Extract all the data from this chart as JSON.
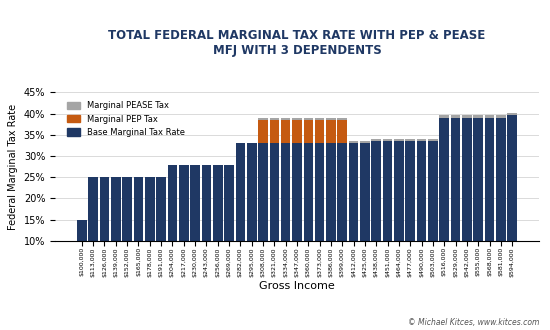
{
  "title_line1": "TOTAL FEDERAL MARGINAL TAX RATE WITH PEP & PEASE",
  "title_line2": "MFJ WITH 3 DEPENDENTS",
  "xlabel": "Gross Income",
  "ylabel": "Federal Marginal Tax Rate",
  "copyright": "© Michael Kitces, www.kitces.com",
  "colors": {
    "base": "#1F3864",
    "pep": "#C55A11",
    "pease": "#A5A5A5",
    "background": "#FFFFFF",
    "title_bg": "#1F3864"
  },
  "legend_labels": [
    "Marginal PEASE Tax",
    "Marginal PEP Tax",
    "Base Marginal Tax Rate"
  ],
  "ylim": [
    0.1,
    0.45
  ],
  "yticks": [
    0.1,
    0.15,
    0.2,
    0.25,
    0.3,
    0.35,
    0.4,
    0.45
  ],
  "categories": [
    "$100,000",
    "$113,000",
    "$126,000",
    "$139,000",
    "$152,000",
    "$165,000",
    "$178,000",
    "$191,000",
    "$204,000",
    "$217,000",
    "$230,000",
    "$243,000",
    "$256,000",
    "$269,000",
    "$282,000",
    "$295,000",
    "$308,000",
    "$321,000",
    "$334,000",
    "$347,000",
    "$360,000",
    "$373,000",
    "$386,000",
    "$399,000",
    "$412,000",
    "$425,000",
    "$438,000",
    "$451,000",
    "$464,000",
    "$477,000",
    "$490,000",
    "$503,000",
    "$516,000",
    "$529,000",
    "$542,000",
    "$555,000",
    "$568,000",
    "$581,000",
    "$594,000"
  ],
  "base_rates": [
    0.15,
    0.25,
    0.25,
    0.25,
    0.25,
    0.25,
    0.25,
    0.25,
    0.28,
    0.28,
    0.28,
    0.28,
    0.28,
    0.28,
    0.33,
    0.33,
    0.33,
    0.33,
    0.33,
    0.33,
    0.33,
    0.33,
    0.33,
    0.33,
    0.33,
    0.33,
    0.335,
    0.335,
    0.335,
    0.335,
    0.335,
    0.335,
    0.39,
    0.39,
    0.39,
    0.39,
    0.39,
    0.39,
    0.396
  ],
  "pep_rates": [
    0.0,
    0.0,
    0.0,
    0.0,
    0.0,
    0.0,
    0.0,
    0.0,
    0.0,
    0.0,
    0.0,
    0.0,
    0.0,
    0.0,
    0.0,
    0.0,
    0.054,
    0.054,
    0.054,
    0.054,
    0.054,
    0.054,
    0.054,
    0.054,
    0.0,
    0.0,
    0.0,
    0.0,
    0.0,
    0.0,
    0.0,
    0.0,
    0.0,
    0.0,
    0.0,
    0.0,
    0.0,
    0.0,
    0.0
  ],
  "pease_rates": [
    0.0,
    0.0,
    0.0,
    0.0,
    0.0,
    0.0,
    0.0,
    0.0,
    0.0,
    0.0,
    0.0,
    0.0,
    0.0,
    0.0,
    0.0,
    0.0,
    0.006,
    0.006,
    0.006,
    0.006,
    0.006,
    0.006,
    0.006,
    0.006,
    0.006,
    0.006,
    0.006,
    0.006,
    0.006,
    0.006,
    0.006,
    0.006,
    0.006,
    0.006,
    0.006,
    0.006,
    0.006,
    0.006,
    0.006
  ]
}
